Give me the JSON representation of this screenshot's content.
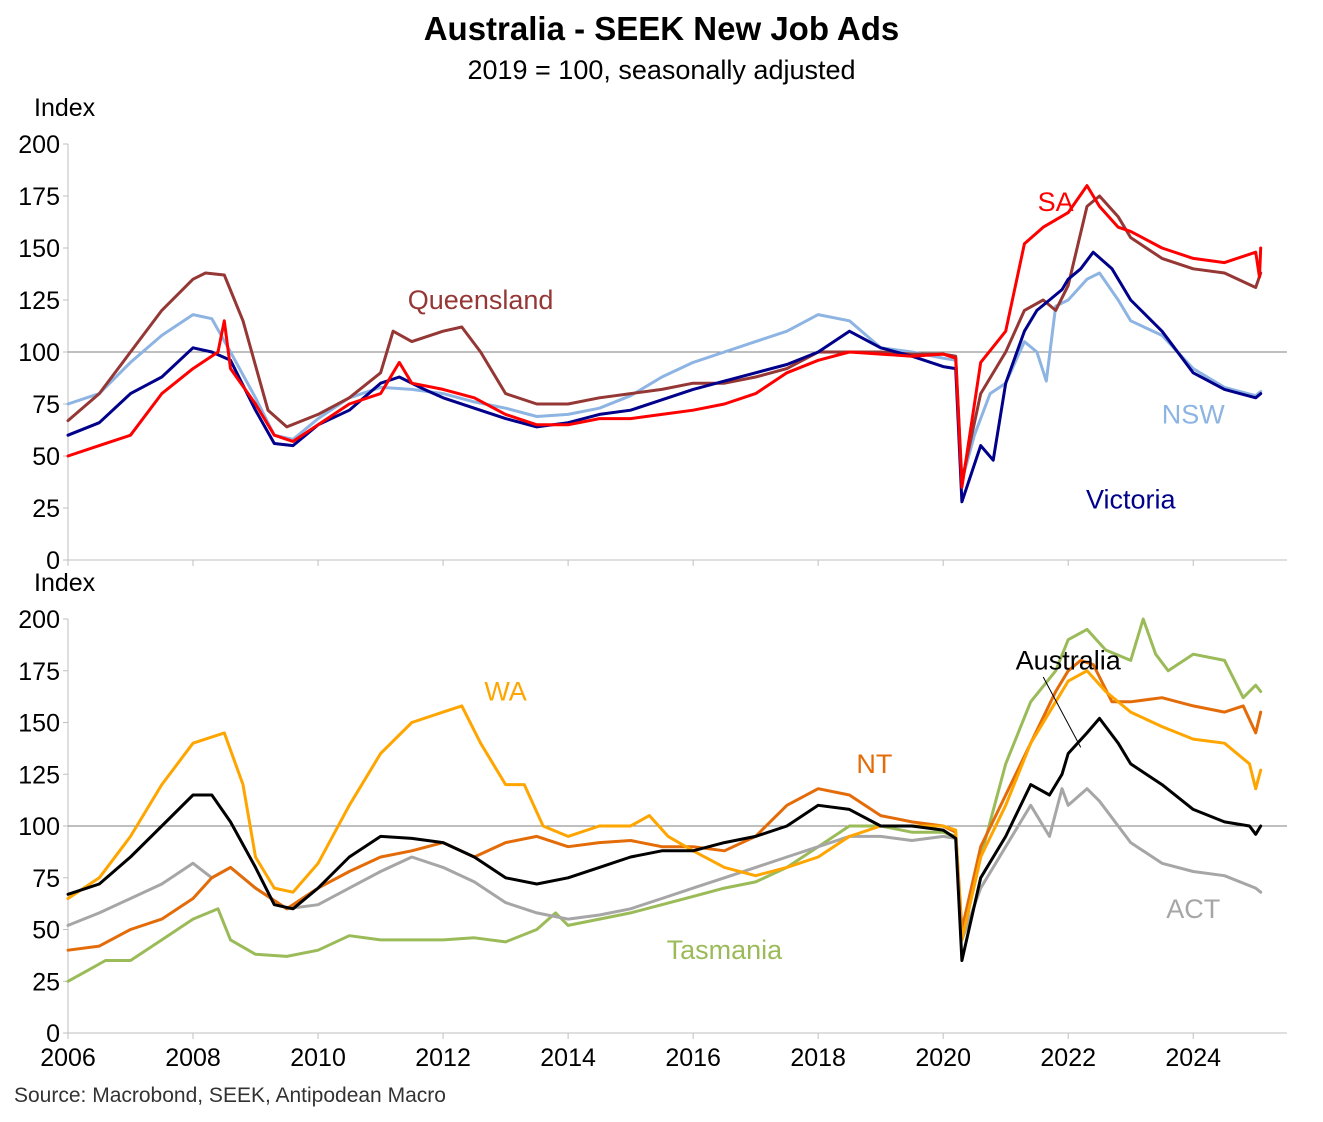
{
  "title": "Australia - SEEK New Job Ads",
  "subtitle": "2019 = 100, seasonally adjusted",
  "source": "Source: Macrobond, SEEK, Antipodean Macro",
  "chart_data": [
    {
      "type": "line",
      "panel": "top",
      "ylabel": "Index",
      "ylim": [
        0,
        200
      ],
      "yticks": [
        0,
        25,
        50,
        75,
        100,
        125,
        150,
        175,
        200
      ],
      "xlim": [
        2006,
        2025.5
      ],
      "xticks": [
        2006,
        2008,
        2010,
        2012,
        2014,
        2016,
        2018,
        2020,
        2022,
        2024
      ],
      "reference_line": 100,
      "grid": false,
      "series": [
        {
          "name": "NSW",
          "color": "#8db4e2",
          "x": [
            2006,
            2006.5,
            2007,
            2007.5,
            2008,
            2008.3,
            2008.6,
            2009,
            2009.3,
            2009.6,
            2010,
            2010.5,
            2011,
            2011.5,
            2012,
            2012.5,
            2013,
            2013.5,
            2014,
            2014.5,
            2015,
            2015.5,
            2016,
            2016.5,
            2017,
            2017.5,
            2018,
            2018.5,
            2019,
            2019.5,
            2020,
            2020.2,
            2020.3,
            2020.5,
            2020.75,
            2021,
            2021.3,
            2021.5,
            2021.65,
            2021.8,
            2022,
            2022.3,
            2022.5,
            2022.8,
            2023,
            2023.5,
            2024,
            2024.5,
            2025,
            2025.08
          ],
          "y": [
            75,
            80,
            95,
            108,
            118,
            116,
            100,
            78,
            60,
            58,
            68,
            78,
            83,
            82,
            80,
            76,
            73,
            69,
            70,
            73,
            79,
            88,
            95,
            100,
            105,
            110,
            118,
            115,
            102,
            100,
            97,
            96,
            38,
            60,
            80,
            85,
            105,
            100,
            86,
            122,
            125,
            135,
            138,
            125,
            115,
            108,
            92,
            83,
            79,
            81
          ]
        },
        {
          "name": "Queensland",
          "color": "#953735",
          "x": [
            2006,
            2006.5,
            2007,
            2007.5,
            2008,
            2008.2,
            2008.5,
            2008.8,
            2009.2,
            2009.5,
            2010,
            2010.5,
            2011,
            2011.2,
            2011.5,
            2012,
            2012.3,
            2012.6,
            2013,
            2013.5,
            2014,
            2014.5,
            2015,
            2015.5,
            2016,
            2016.5,
            2017,
            2017.5,
            2018,
            2018.5,
            2019,
            2019.5,
            2020,
            2020.2,
            2020.3,
            2020.6,
            2021,
            2021.3,
            2021.6,
            2021.8,
            2022,
            2022.3,
            2022.5,
            2022.8,
            2023,
            2023.5,
            2024,
            2024.5,
            2025,
            2025.08
          ],
          "y": [
            67,
            80,
            100,
            120,
            135,
            138,
            137,
            115,
            72,
            64,
            70,
            78,
            90,
            110,
            105,
            110,
            112,
            100,
            80,
            75,
            75,
            78,
            80,
            82,
            85,
            85,
            88,
            92,
            100,
            100,
            100,
            99,
            99,
            98,
            38,
            80,
            100,
            120,
            125,
            120,
            132,
            170,
            175,
            165,
            155,
            145,
            140,
            138,
            131,
            138
          ]
        },
        {
          "name": "Victoria",
          "color": "#00008b",
          "x": [
            2006,
            2006.5,
            2007,
            2007.5,
            2008,
            2008.3,
            2008.6,
            2009,
            2009.3,
            2009.6,
            2010,
            2010.5,
            2011,
            2011.3,
            2011.7,
            2012,
            2012.5,
            2013,
            2013.5,
            2014,
            2014.5,
            2015,
            2015.5,
            2016,
            2016.5,
            2017,
            2017.5,
            2018,
            2018.5,
            2019,
            2019.5,
            2020,
            2020.2,
            2020.3,
            2020.6,
            2020.8,
            2021,
            2021.3,
            2021.5,
            2021.7,
            2021.9,
            2022,
            2022.2,
            2022.4,
            2022.7,
            2023,
            2023.5,
            2024,
            2024.5,
            2025,
            2025.08
          ],
          "y": [
            60,
            66,
            80,
            88,
            102,
            100,
            96,
            72,
            56,
            55,
            65,
            72,
            85,
            88,
            82,
            78,
            73,
            68,
            64,
            66,
            70,
            72,
            77,
            82,
            86,
            90,
            94,
            100,
            110,
            102,
            98,
            93,
            92,
            28,
            55,
            48,
            85,
            110,
            120,
            125,
            130,
            135,
            140,
            148,
            140,
            125,
            110,
            90,
            82,
            78,
            80
          ]
        },
        {
          "name": "SA",
          "color": "#ff0000",
          "x": [
            2006,
            2006.5,
            2007,
            2007.5,
            2008,
            2008.4,
            2008.5,
            2008.6,
            2009,
            2009.3,
            2009.6,
            2010,
            2010.5,
            2011,
            2011.3,
            2011.5,
            2012,
            2012.5,
            2013,
            2013.5,
            2014,
            2014.5,
            2015,
            2015.5,
            2016,
            2016.5,
            2017,
            2017.5,
            2018,
            2018.5,
            2019,
            2019.5,
            2020,
            2020.2,
            2020.3,
            2020.6,
            2021,
            2021.3,
            2021.6,
            2022,
            2022.3,
            2022.5,
            2022.8,
            2023,
            2023.5,
            2024,
            2024.5,
            2025,
            2025.06,
            2025.08
          ],
          "y": [
            50,
            55,
            60,
            80,
            92,
            100,
            115,
            92,
            75,
            60,
            57,
            65,
            75,
            80,
            95,
            85,
            82,
            78,
            70,
            65,
            65,
            68,
            68,
            70,
            72,
            75,
            80,
            90,
            96,
            100,
            99,
            98,
            99,
            97,
            35,
            95,
            110,
            152,
            160,
            167,
            180,
            170,
            160,
            158,
            150,
            145,
            143,
            148,
            136,
            150
          ]
        }
      ],
      "labels": [
        {
          "text": "Queensland",
          "color": "#953735",
          "x": 2012.6,
          "y": 125
        },
        {
          "text": "SA",
          "color": "#ff0000",
          "x": 2021.8,
          "y": 172
        },
        {
          "text": "NSW",
          "color": "#8db4e2",
          "x": 2024.0,
          "y": 70
        },
        {
          "text": "Victoria",
          "color": "#00008b",
          "x": 2023.0,
          "y": 29
        }
      ]
    },
    {
      "type": "line",
      "panel": "bottom",
      "ylabel": "Index",
      "ylim": [
        0,
        200
      ],
      "yticks": [
        0,
        25,
        50,
        75,
        100,
        125,
        150,
        175,
        200
      ],
      "xlim": [
        2006,
        2025.5
      ],
      "xticks": [
        2006,
        2008,
        2010,
        2012,
        2014,
        2016,
        2018,
        2020,
        2022,
        2024
      ],
      "xticklabels": [
        "2006",
        "2008",
        "2010",
        "2012",
        "2014",
        "2016",
        "2018",
        "2020",
        "2022",
        "2024"
      ],
      "reference_line": 100,
      "grid": false,
      "series": [
        {
          "name": "Tasmania",
          "color": "#9bbb59",
          "x": [
            2006,
            2006.3,
            2006.6,
            2007,
            2007.5,
            2008,
            2008.4,
            2008.6,
            2009,
            2009.5,
            2010,
            2010.5,
            2011,
            2011.5,
            2012,
            2012.5,
            2013,
            2013.5,
            2013.8,
            2014,
            2014.5,
            2015,
            2015.5,
            2016,
            2016.5,
            2017,
            2017.5,
            2018,
            2018.5,
            2019,
            2019.5,
            2020,
            2020.2,
            2020.3,
            2020.6,
            2021,
            2021.4,
            2021.8,
            2022,
            2022.3,
            2022.6,
            2023,
            2023.2,
            2023.4,
            2023.6,
            2024,
            2024.5,
            2024.8,
            2025,
            2025.08
          ],
          "y": [
            25,
            30,
            35,
            35,
            45,
            55,
            60,
            45,
            38,
            37,
            40,
            47,
            45,
            45,
            45,
            46,
            44,
            50,
            58,
            52,
            55,
            58,
            62,
            66,
            70,
            73,
            80,
            90,
            100,
            100,
            97,
            97,
            95,
            45,
            85,
            130,
            160,
            175,
            190,
            195,
            185,
            180,
            200,
            183,
            175,
            183,
            180,
            162,
            168,
            165
          ]
        },
        {
          "name": "ACT",
          "color": "#a6a6a6",
          "x": [
            2006,
            2006.5,
            2007,
            2007.5,
            2008,
            2008.3,
            2008.6,
            2009,
            2009.5,
            2010,
            2010.5,
            2011,
            2011.5,
            2012,
            2012.5,
            2013,
            2013.5,
            2014,
            2014.5,
            2015,
            2015.5,
            2016,
            2016.5,
            2017,
            2017.5,
            2018,
            2018.5,
            2019,
            2019.5,
            2020,
            2020.2,
            2020.3,
            2020.6,
            2021,
            2021.4,
            2021.7,
            2021.9,
            2022,
            2022.3,
            2022.5,
            2022.8,
            2023,
            2023.5,
            2024,
            2024.5,
            2025,
            2025.08
          ],
          "y": [
            52,
            58,
            65,
            72,
            82,
            75,
            80,
            70,
            60,
            62,
            70,
            78,
            85,
            80,
            73,
            63,
            58,
            55,
            57,
            60,
            65,
            70,
            75,
            80,
            85,
            90,
            95,
            95,
            93,
            95,
            94,
            45,
            70,
            90,
            110,
            95,
            118,
            110,
            118,
            112,
            100,
            92,
            82,
            78,
            76,
            70,
            68
          ]
        },
        {
          "name": "NT",
          "color": "#e36c09",
          "x": [
            2006,
            2006.5,
            2007,
            2007.5,
            2008,
            2008.3,
            2008.6,
            2009,
            2009.5,
            2010,
            2010.5,
            2011,
            2011.5,
            2012,
            2012.5,
            2013,
            2013.5,
            2014,
            2014.5,
            2015,
            2015.5,
            2016,
            2016.5,
            2017,
            2017.5,
            2018,
            2018.5,
            2019,
            2019.5,
            2020,
            2020.2,
            2020.3,
            2020.6,
            2021,
            2021.4,
            2021.8,
            2022,
            2022.2,
            2022.4,
            2022.7,
            2023,
            2023.5,
            2024,
            2024.5,
            2024.8,
            2025,
            2025.08
          ],
          "y": [
            40,
            42,
            50,
            55,
            65,
            75,
            80,
            70,
            60,
            70,
            78,
            85,
            88,
            92,
            85,
            92,
            95,
            90,
            92,
            93,
            90,
            90,
            88,
            95,
            110,
            118,
            115,
            105,
            102,
            100,
            97,
            50,
            90,
            115,
            140,
            165,
            175,
            180,
            178,
            160,
            160,
            162,
            158,
            155,
            158,
            145,
            155
          ]
        },
        {
          "name": "WA",
          "color": "#ffa500",
          "x": [
            2006,
            2006.5,
            2007,
            2007.5,
            2008,
            2008.5,
            2008.8,
            2009,
            2009.3,
            2009.6,
            2010,
            2010.5,
            2011,
            2011.5,
            2012,
            2012.3,
            2012.6,
            2013,
            2013.3,
            2013.6,
            2014,
            2014.5,
            2015,
            2015.3,
            2015.6,
            2016,
            2016.5,
            2017,
            2017.5,
            2018,
            2018.5,
            2019,
            2019.5,
            2020,
            2020.2,
            2020.3,
            2020.6,
            2021,
            2021.4,
            2021.8,
            2022,
            2022.3,
            2022.6,
            2023,
            2023.5,
            2024,
            2024.5,
            2024.9,
            2025,
            2025.08
          ],
          "y": [
            65,
            75,
            95,
            120,
            140,
            145,
            120,
            85,
            70,
            68,
            82,
            110,
            135,
            150,
            155,
            158,
            140,
            120,
            120,
            100,
            95,
            100,
            100,
            105,
            95,
            88,
            80,
            76,
            80,
            85,
            95,
            100,
            100,
            100,
            98,
            45,
            85,
            110,
            140,
            160,
            170,
            175,
            165,
            155,
            148,
            142,
            140,
            130,
            118,
            127
          ]
        },
        {
          "name": "Australia",
          "color": "#000000",
          "x": [
            2006,
            2006.5,
            2007,
            2007.5,
            2008,
            2008.3,
            2008.6,
            2009,
            2009.3,
            2009.6,
            2010,
            2010.5,
            2011,
            2011.5,
            2012,
            2012.5,
            2013,
            2013.5,
            2014,
            2014.5,
            2015,
            2015.5,
            2016,
            2016.5,
            2017,
            2017.5,
            2018,
            2018.5,
            2019,
            2019.5,
            2020,
            2020.2,
            2020.3,
            2020.6,
            2021,
            2021.4,
            2021.7,
            2021.9,
            2022,
            2022.3,
            2022.5,
            2022.8,
            2023,
            2023.5,
            2024,
            2024.5,
            2024.9,
            2025,
            2025.08
          ],
          "y": [
            67,
            72,
            85,
            100,
            115,
            115,
            102,
            80,
            62,
            60,
            70,
            85,
            95,
            94,
            92,
            85,
            75,
            72,
            75,
            80,
            85,
            88,
            88,
            92,
            95,
            100,
            110,
            108,
            100,
            100,
            98,
            94,
            35,
            75,
            95,
            120,
            115,
            125,
            135,
            145,
            152,
            140,
            130,
            120,
            108,
            102,
            100,
            96,
            100
          ]
        }
      ],
      "labels": [
        {
          "text": "WA",
          "color": "#ffa500",
          "x": 2013.0,
          "y": 165
        },
        {
          "text": "NT",
          "color": "#e36c09",
          "x": 2018.9,
          "y": 130
        },
        {
          "text": "Australia",
          "color": "#000000",
          "x": 2022.0,
          "y": 180
        },
        {
          "text": "Tasmania",
          "color": "#9bbb59",
          "x": 2016.5,
          "y": 40
        },
        {
          "text": "ACT",
          "color": "#a6a6a6",
          "x": 2024.0,
          "y": 60
        }
      ]
    }
  ]
}
